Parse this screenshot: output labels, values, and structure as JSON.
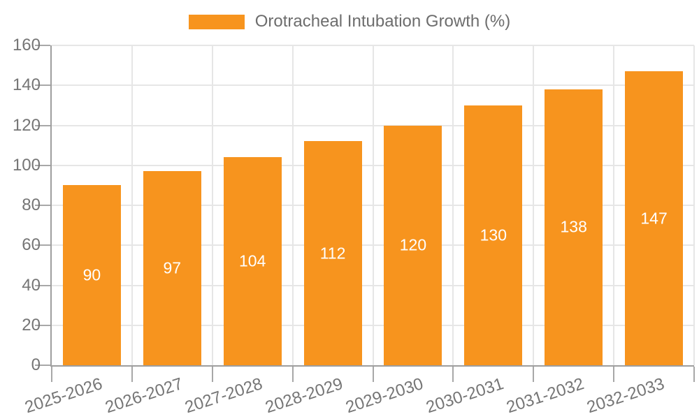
{
  "legend": {
    "label": "Orotracheal Intubation Growth (%)"
  },
  "chart_data": {
    "type": "bar",
    "title": "Orotracheal Intubation Growth (%)",
    "categories": [
      "2025-2026",
      "2026-2027",
      "2027-2028",
      "2028-2029",
      "2029-2030",
      "2030-2031",
      "2031-2032",
      "2032-2033"
    ],
    "values": [
      90,
      97,
      104,
      112,
      120,
      130,
      138,
      147
    ],
    "xlabel": "",
    "ylabel": "",
    "ylim": [
      0,
      160
    ],
    "ytick_step": 20,
    "yticks": [
      0,
      20,
      40,
      60,
      80,
      100,
      120,
      140,
      160
    ],
    "grid": true,
    "legend_position": "top-center",
    "bar_label_position": "inside-middle",
    "x_label_rotation_deg": -18
  },
  "colors": {
    "bar": "#f7941e",
    "bar_label": "#ffffff",
    "axis_line": "#9e9e9e",
    "tick_mark": "#a8a8a8",
    "grid_line": "#e6e6e6",
    "axis_text": "#757575",
    "legend_text": "#6d6d6d",
    "background": "#ffffff"
  }
}
